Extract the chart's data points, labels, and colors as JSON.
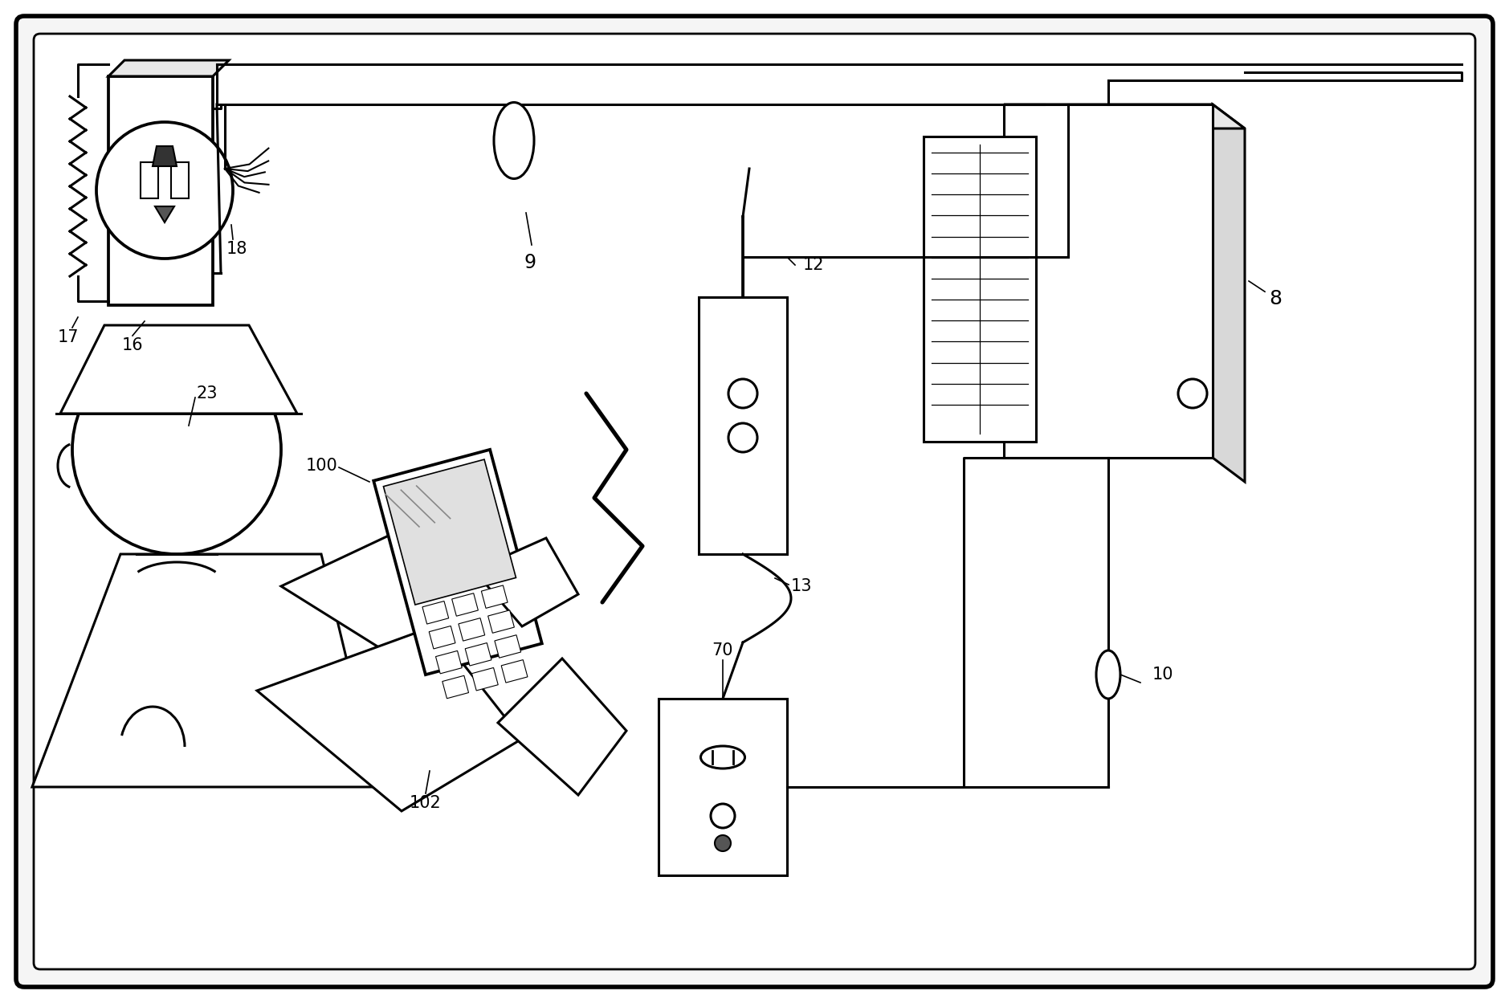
{
  "fig_width": 18.79,
  "fig_height": 12.49,
  "dpi": 100,
  "lw": 2.2,
  "lw_thin": 1.2,
  "lw_thick": 3.0,
  "lc": "#000000",
  "bg": "#ffffff",
  "label_fs": 15
}
